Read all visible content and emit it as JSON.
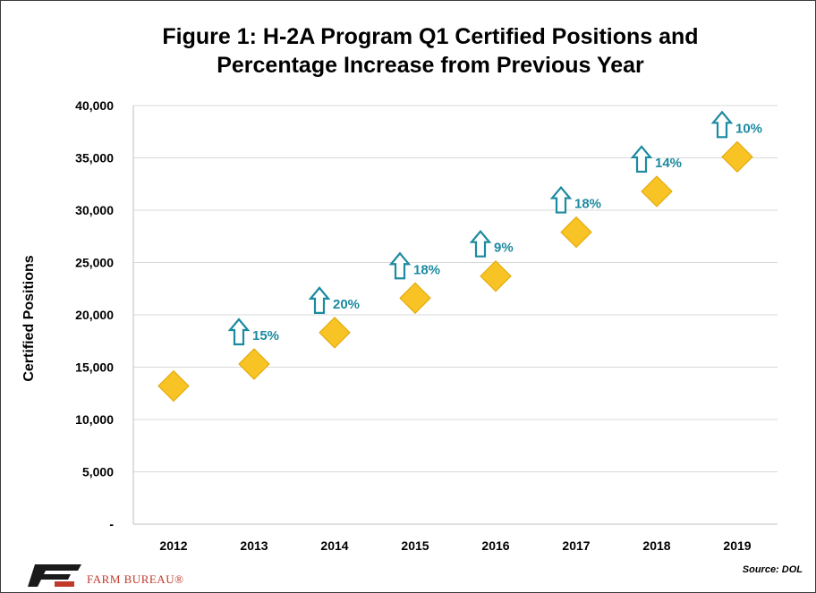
{
  "title_line1": "Figure 1: H-2A Program Q1 Certified Positions and",
  "title_line2": "Percentage Increase from Previous Year",
  "source": "Source: DOL",
  "logo_text": "FARM BUREAU®",
  "colors": {
    "marker": "#f7c325",
    "marker_edge": "#e2a400",
    "arrow": "#1c8aa0",
    "label": "#1c8aa0",
    "logo": "#c0392b"
  },
  "chart_data": {
    "type": "scatter",
    "title": "Figure 1: H-2A Program Q1 Certified Positions and Percentage Increase from Previous Year",
    "xlabel": "",
    "ylabel": "Certified Positions",
    "x": [
      "2012",
      "2013",
      "2014",
      "2015",
      "2016",
      "2017",
      "2018",
      "2019"
    ],
    "y": [
      13200,
      15300,
      18300,
      21600,
      23700,
      27900,
      31800,
      35100
    ],
    "pct_change_labels": [
      "",
      "15%",
      "20%",
      "18%",
      "9%",
      "18%",
      "14%",
      "10%"
    ],
    "ylim": [
      0,
      40000
    ],
    "yticks": [
      0,
      5000,
      10000,
      15000,
      20000,
      25000,
      30000,
      35000,
      40000
    ],
    "ytick_labels": [
      "-",
      "5,000",
      "10,000",
      "15,000",
      "20,000",
      "25,000",
      "30,000",
      "35,000",
      "40,000"
    ],
    "grid": true,
    "legend": "none"
  }
}
